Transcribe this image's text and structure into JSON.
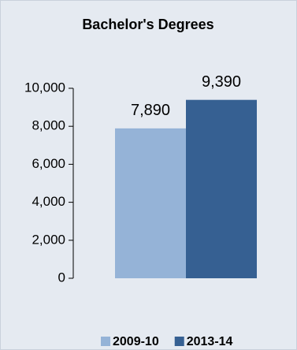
{
  "chart_data": {
    "type": "bar",
    "title": "Bachelor's Degrees",
    "categories": [
      null
    ],
    "series": [
      {
        "name": "2009-10",
        "color": "#95b3d7",
        "values": [
          7890
        ],
        "value_labels": [
          "7,890"
        ]
      },
      {
        "name": "2013-14",
        "color": "#366092",
        "values": [
          9390
        ],
        "value_labels": [
          "9,390"
        ]
      }
    ],
    "ylim": [
      0,
      10000
    ],
    "yticks": [
      0,
      {
        "value": 2000,
        "label": "2,000"
      },
      {
        "value": 4000,
        "label": "4,000"
      },
      {
        "value": 6000,
        "label": "6,000"
      },
      {
        "value": 8000,
        "label": "8,000"
      },
      {
        "value": 10000,
        "label": "10,000"
      }
    ],
    "grid": false,
    "legend": "bottom"
  }
}
